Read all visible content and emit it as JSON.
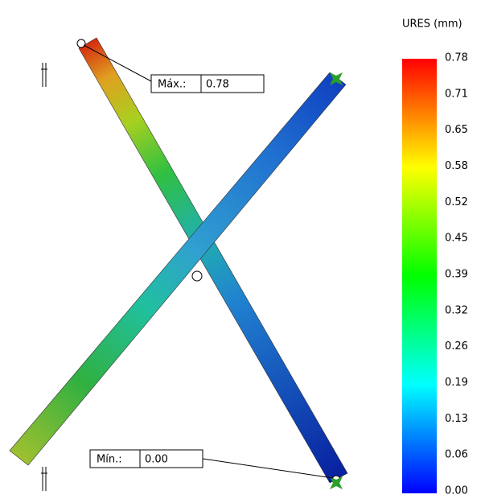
{
  "legend": {
    "title": "URES (mm)",
    "ticks": [
      "0.78",
      "0.71",
      "0.65",
      "0.58",
      "0.52",
      "0.45",
      "0.39",
      "0.32",
      "0.26",
      "0.19",
      "0.13",
      "0.06",
      "0.00"
    ]
  },
  "annotations": {
    "max": {
      "label": "Máx.:",
      "value": "0.78"
    },
    "min": {
      "label": "Mín.:",
      "value": "0.00"
    }
  }
}
